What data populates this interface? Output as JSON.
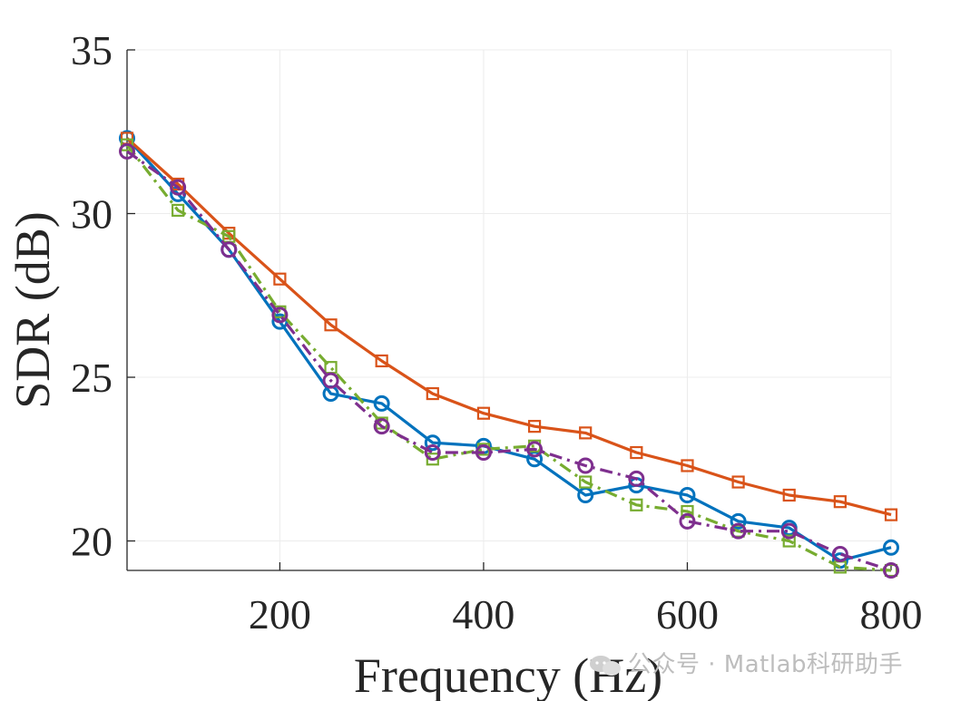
{
  "chart_data": {
    "type": "line",
    "xlabel": "Frequency (Hz)",
    "ylabel": "SDR (dB)",
    "xlim": [
      50,
      800
    ],
    "ylim": [
      19.1,
      35
    ],
    "xticks": [
      200,
      400,
      600,
      800
    ],
    "yticks": [
      20,
      25,
      30,
      35
    ],
    "grid": true,
    "x": [
      50,
      100,
      150,
      200,
      250,
      300,
      350,
      400,
      450,
      500,
      550,
      600,
      650,
      700,
      750,
      800
    ],
    "series": [
      {
        "name": "blue-circle-solid",
        "color": "#0072BD",
        "marker": "circle",
        "linestyle": "solid",
        "values": [
          32.3,
          30.6,
          28.9,
          26.7,
          24.5,
          24.2,
          23.0,
          22.9,
          22.5,
          21.4,
          21.7,
          21.4,
          20.6,
          20.4,
          19.4,
          19.8
        ]
      },
      {
        "name": "orange-square-solid",
        "color": "#D95319",
        "marker": "square",
        "linestyle": "solid",
        "values": [
          32.3,
          30.9,
          29.4,
          28.0,
          26.6,
          25.5,
          24.5,
          23.9,
          23.5,
          23.3,
          22.7,
          22.3,
          21.8,
          21.4,
          21.2,
          20.8
        ]
      },
      {
        "name": "green-square-dashdot",
        "color": "#77AC30",
        "marker": "square",
        "linestyle": "dashdot",
        "values": [
          32.1,
          30.1,
          29.3,
          27.0,
          25.3,
          23.6,
          22.5,
          22.8,
          22.9,
          21.8,
          21.1,
          20.9,
          20.3,
          20.0,
          19.2,
          19.1
        ]
      },
      {
        "name": "purple-circle-dashdot",
        "color": "#7E2F8E",
        "marker": "circle",
        "linestyle": "dashdot",
        "values": [
          31.9,
          30.8,
          28.9,
          26.9,
          24.9,
          23.5,
          22.7,
          22.7,
          22.8,
          22.3,
          21.9,
          20.6,
          20.3,
          20.3,
          19.6,
          19.1
        ]
      }
    ]
  },
  "watermark": {
    "text": "公众号 · Matlab科研助手"
  }
}
